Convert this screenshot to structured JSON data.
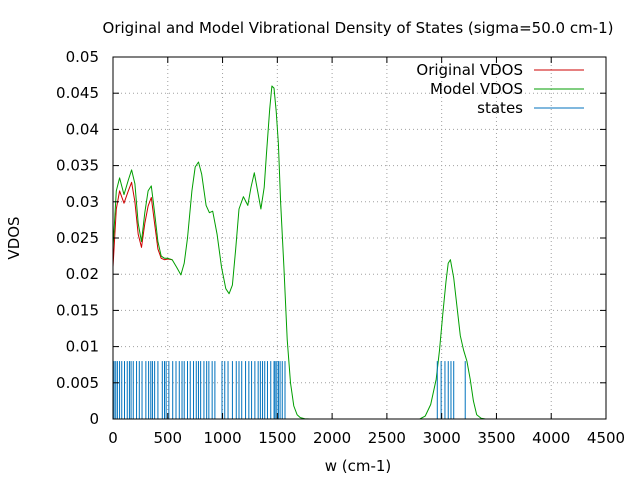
{
  "chart_data": {
    "type": "line",
    "title": "Original and Model Vibrational Density of States (sigma=50.0 cm-1)",
    "xlabel": "w (cm-1)",
    "ylabel": "VDOS",
    "xlim": [
      0,
      4500
    ],
    "ylim": [
      0,
      0.05
    ],
    "xticks": [
      0,
      500,
      1000,
      1500,
      2000,
      2500,
      3000,
      3500,
      4000,
      4500
    ],
    "yticks": [
      0,
      0.005,
      0.01,
      0.015,
      0.02,
      0.025,
      0.03,
      0.035,
      0.04,
      0.045,
      0.05
    ],
    "xtick_labels": [
      "0",
      "500",
      "1000",
      "1500",
      "2000",
      "2500",
      "3000",
      "3500",
      "4000",
      "4500"
    ],
    "ytick_labels": [
      "0",
      "0.005",
      "0.01",
      "0.015",
      "0.02",
      "0.025",
      "0.03",
      "0.035",
      "0.04",
      "0.045",
      "0.05"
    ],
    "grid": true,
    "legend_position": "top-right",
    "series": [
      {
        "name": "Original VDOS",
        "color": "#cc0000",
        "x": [
          0,
          30,
          60,
          100,
          140,
          170,
          200,
          230,
          260,
          290,
          320,
          350,
          380,
          410,
          440,
          470,
          500,
          540
        ],
        "y": [
          0.021,
          0.029,
          0.0315,
          0.0298,
          0.0315,
          0.0327,
          0.03,
          0.0255,
          0.0237,
          0.027,
          0.0294,
          0.0306,
          0.027,
          0.0235,
          0.0222,
          0.022,
          0.0221,
          0.022
        ]
      },
      {
        "name": "Model VDOS",
        "color": "#009e00",
        "x": [
          0,
          30,
          60,
          100,
          140,
          170,
          200,
          230,
          260,
          290,
          320,
          350,
          380,
          410,
          440,
          470,
          500,
          540,
          580,
          620,
          650,
          680,
          720,
          750,
          780,
          810,
          850,
          880,
          910,
          950,
          990,
          1030,
          1060,
          1090,
          1120,
          1150,
          1190,
          1230,
          1260,
          1290,
          1320,
          1350,
          1380,
          1400,
          1430,
          1450,
          1470,
          1490,
          1510,
          1530,
          1560,
          1590,
          1620,
          1650,
          1680,
          1710,
          1750,
          1800,
          1850,
          2000,
          2500,
          2800,
          2850,
          2900,
          2950,
          2980,
          3010,
          3040,
          3060,
          3080,
          3110,
          3140,
          3170,
          3200,
          3230,
          3260,
          3290,
          3320,
          3360,
          3400,
          3500,
          4000,
          4500
        ],
        "y": [
          0.0235,
          0.0315,
          0.0333,
          0.031,
          0.033,
          0.0344,
          0.0325,
          0.027,
          0.0245,
          0.0285,
          0.0315,
          0.0322,
          0.0285,
          0.0245,
          0.0225,
          0.0222,
          0.0222,
          0.022,
          0.021,
          0.0199,
          0.0215,
          0.025,
          0.0315,
          0.0348,
          0.0355,
          0.0338,
          0.0295,
          0.0285,
          0.0287,
          0.0255,
          0.021,
          0.018,
          0.0173,
          0.0185,
          0.0235,
          0.029,
          0.0307,
          0.0295,
          0.032,
          0.034,
          0.0315,
          0.029,
          0.032,
          0.0365,
          0.0428,
          0.046,
          0.0457,
          0.0425,
          0.038,
          0.03,
          0.021,
          0.011,
          0.005,
          0.0018,
          0.0006,
          0.0002,
          4e-05,
          0.0,
          0.0,
          0.0,
          0.0,
          0.0,
          0.0004,
          0.002,
          0.0055,
          0.0095,
          0.0145,
          0.019,
          0.0215,
          0.022,
          0.0195,
          0.0155,
          0.0115,
          0.0095,
          0.008,
          0.0055,
          0.0025,
          0.0006,
          0.0001,
          0.0,
          0.0,
          0.0,
          0.0
        ]
      },
      {
        "name": "states",
        "color": "#0072bd",
        "type": "impulses",
        "height": 0.008,
        "x": [
          10,
          25,
          40,
          60,
          80,
          105,
          130,
          150,
          165,
          185,
          215,
          240,
          265,
          300,
          325,
          345,
          360,
          380,
          410,
          450,
          470,
          485,
          510,
          545,
          575,
          605,
          630,
          650,
          680,
          705,
          735,
          760,
          780,
          800,
          830,
          855,
          875,
          905,
          930,
          995,
          1020,
          1050,
          1090,
          1125,
          1150,
          1175,
          1210,
          1240,
          1265,
          1295,
          1325,
          1345,
          1365,
          1385,
          1410,
          1440,
          1470,
          1480,
          1495,
          1510,
          1525,
          1545,
          1570,
          2960,
          2995,
          3030,
          3060,
          3085,
          3110,
          3215
        ]
      }
    ]
  }
}
